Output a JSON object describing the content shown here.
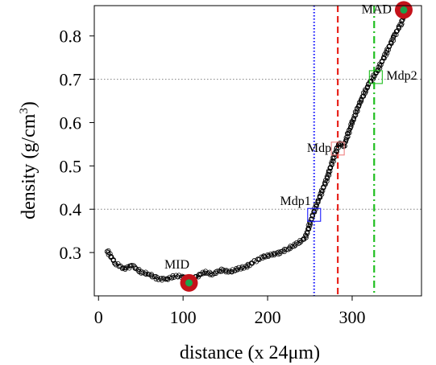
{
  "chart_data": {
    "type": "scatter",
    "title": "",
    "xlabel": "distance (x 24μm)",
    "ylabel_main": "density (g/cm",
    "ylabel_sup": "3",
    "ylabel_close": ")",
    "xlim": [
      -5,
      382
    ],
    "ylim": [
      0.2,
      0.87
    ],
    "xticks": [
      0,
      100,
      200,
      300
    ],
    "xtick_labels": [
      "0",
      "100",
      "200",
      "300"
    ],
    "yticks": [
      0.3,
      0.4,
      0.5,
      0.6,
      0.7,
      0.8
    ],
    "ytick_labels": [
      "0.3",
      "0.4",
      "0.5",
      "0.6",
      "0.7",
      "0.8"
    ],
    "grid": false,
    "hlines": [
      {
        "y": 0.4,
        "style": "dotted",
        "color": "#808080"
      },
      {
        "y": 0.7,
        "style": "dotted",
        "color": "#808080"
      }
    ],
    "vlines": [
      {
        "x": 255,
        "style": "dotted",
        "color": "#1a1aff"
      },
      {
        "x": 283,
        "style": "dashed",
        "color": "#e8221b"
      },
      {
        "x": 326,
        "style": "dashdot",
        "color": "#1fbf1f"
      }
    ],
    "profile": {
      "x": [
        10,
        20,
        30,
        40,
        50,
        60,
        70,
        80,
        90,
        100,
        106,
        115,
        125,
        135,
        145,
        155,
        165,
        175,
        185,
        195,
        205,
        215,
        225,
        235,
        245,
        252,
        260,
        270,
        280,
        285,
        290,
        300,
        310,
        320,
        330,
        340,
        350,
        358,
        362
      ],
      "y": [
        0.305,
        0.275,
        0.262,
        0.27,
        0.255,
        0.25,
        0.24,
        0.238,
        0.245,
        0.245,
        0.235,
        0.243,
        0.255,
        0.25,
        0.26,
        0.255,
        0.262,
        0.268,
        0.28,
        0.29,
        0.295,
        0.3,
        0.31,
        0.32,
        0.335,
        0.38,
        0.42,
        0.47,
        0.53,
        0.553,
        0.545,
        0.6,
        0.65,
        0.69,
        0.72,
        0.76,
        0.8,
        0.83,
        0.85
      ],
      "marker": "open-circle",
      "color": "#000000"
    },
    "annotations": [
      {
        "label": "MID",
        "x": 107,
        "y": 0.23,
        "marker": "target",
        "outer_color": "#c4121a",
        "inner_color": "#1aa34a"
      },
      {
        "label": "MAD",
        "x": 361,
        "y": 0.86,
        "marker": "target",
        "outer_color": "#c4121a",
        "inner_color": "#1aa34a"
      },
      {
        "label": "Mdp1",
        "x": 255,
        "y": 0.387,
        "marker": "open-square",
        "color": "#1a1aff"
      },
      {
        "label": "Mdp",
        "x": 283,
        "y": 0.54,
        "marker": "open-square",
        "color": "#f08080"
      },
      {
        "label": "Mdp2",
        "x": 328,
        "y": 0.705,
        "marker": "open-square",
        "color": "#1fbf1f"
      }
    ]
  }
}
